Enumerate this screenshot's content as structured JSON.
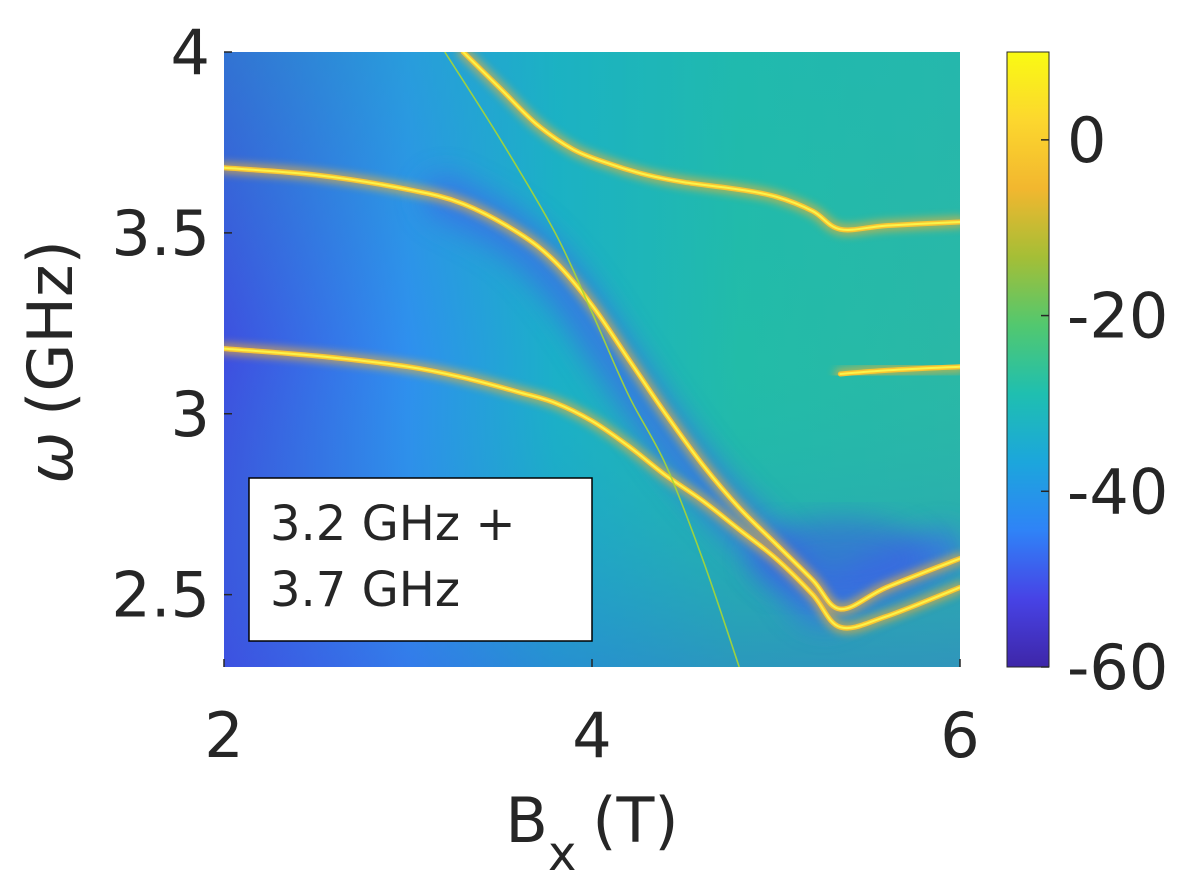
{
  "chart_data": {
    "type": "heatmap",
    "title": "",
    "xlabel": "B",
    "xlabel_subscript": "x",
    "xlabel_unit": "(T)",
    "ylabel_symbol": "ω",
    "ylabel_unit": "(GHz)",
    "xlim": [
      2,
      6
    ],
    "ylim": [
      2.3,
      4
    ],
    "x_ticks": [
      2,
      4,
      6
    ],
    "x_tick_labels": [
      "2",
      "4",
      "6"
    ],
    "y_ticks": [
      2.5,
      3,
      3.5,
      4
    ],
    "y_tick_labels": [
      "2.5",
      "3",
      "3.5",
      "4"
    ],
    "colorbar": {
      "range": [
        -60,
        10
      ],
      "ticks": [
        0,
        -20,
        -40,
        -60
      ],
      "tick_labels": [
        "0",
        "-20",
        "-40",
        "-60"
      ],
      "colormap": "parula",
      "stops": [
        "#3e26a8",
        "#4743e6",
        "#2f83f7",
        "#1ca6dc",
        "#1fbfb0",
        "#52c86f",
        "#a5be36",
        "#f2b72f",
        "#fcd72e",
        "#f9fa13"
      ]
    },
    "annotation": {
      "line1": "3.2 GHz +",
      "line2": "3.7 GHz",
      "placement": "bottom-left"
    },
    "series": [
      {
        "name": "lower hybrid mode",
        "x": [
          2.0,
          2.5,
          3.0,
          3.3,
          3.6,
          3.8,
          4.0,
          4.2,
          4.4,
          4.6,
          4.8,
          5.0,
          5.2,
          5.35,
          5.6,
          6.0
        ],
        "y": [
          3.18,
          3.16,
          3.13,
          3.1,
          3.06,
          3.03,
          2.98,
          2.91,
          2.83,
          2.76,
          2.68,
          2.6,
          2.5,
          2.41,
          2.44,
          2.52
        ]
      },
      {
        "name": "middle hybrid mode",
        "x": [
          2.0,
          2.5,
          3.0,
          3.3,
          3.6,
          3.8,
          4.0,
          4.2,
          4.4,
          4.6,
          4.8,
          5.0,
          5.2,
          5.35,
          5.6,
          6.0
        ],
        "y": [
          3.68,
          3.66,
          3.62,
          3.58,
          3.5,
          3.42,
          3.3,
          3.15,
          3.0,
          2.86,
          2.74,
          2.64,
          2.54,
          2.46,
          2.52,
          2.6
        ]
      },
      {
        "name": "upper hybrid mode",
        "x": [
          3.3,
          3.5,
          3.7,
          3.9,
          4.1,
          4.3,
          4.5,
          4.8,
          5.0,
          5.2,
          5.35,
          5.6,
          6.0
        ],
        "y": [
          4.0,
          3.9,
          3.8,
          3.73,
          3.69,
          3.66,
          3.64,
          3.62,
          3.6,
          3.56,
          3.51,
          3.52,
          3.53
        ]
      },
      {
        "name": "upper plateau",
        "x": [
          5.35,
          5.6,
          6.0
        ],
        "y": [
          3.11,
          3.12,
          3.13
        ]
      },
      {
        "name": "thin spin resonance",
        "x": [
          3.2,
          3.5,
          3.8,
          4.0,
          4.2,
          4.4,
          4.6,
          4.8
        ],
        "y": [
          4.0,
          3.76,
          3.5,
          3.28,
          3.05,
          2.86,
          2.6,
          2.3
        ]
      }
    ]
  }
}
